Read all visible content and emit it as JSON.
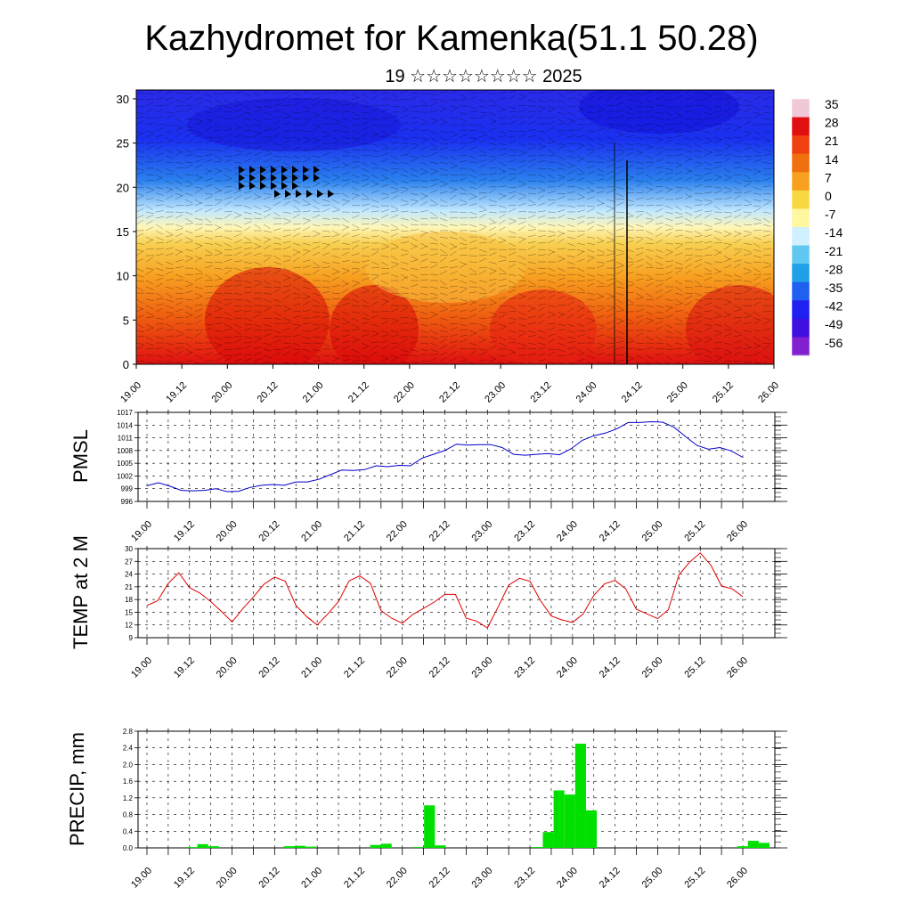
{
  "title": "Kazhydromet for Kamenka(51.1 50.28)",
  "subtitle": "19 ☆☆☆☆☆☆☆☆ 2025",
  "time_labels": [
    "19.00",
    "19.12",
    "20.00",
    "20.12",
    "21.00",
    "21.12",
    "22.00",
    "22.12",
    "23.00",
    "23.12",
    "24.00",
    "24.12",
    "25.00",
    "25.12",
    "26.00"
  ],
  "chart_data": [
    {
      "type": "heatmap",
      "name": "cross-section",
      "x_ticks": [
        "19.00",
        "19.12",
        "20.00",
        "20.12",
        "21.00",
        "21.12",
        "22.00",
        "22.12",
        "23.00",
        "23.12",
        "24.00",
        "24.12",
        "25.00",
        "25.12",
        "26.00"
      ],
      "y_ticks": [
        "0",
        "5",
        "10",
        "15",
        "20",
        "25",
        "30"
      ],
      "ylim": [
        0,
        31
      ],
      "colorbar_ticks": [
        "35",
        "28",
        "21",
        "14",
        "7",
        "0",
        "-7",
        "-14",
        "-21",
        "-28",
        "-35",
        "-42",
        "-49",
        "-56"
      ],
      "colorbar_colors": [
        "#f0c8d8",
        "#e01010",
        "#f04010",
        "#f07010",
        "#f8a020",
        "#f8d840",
        "#fff8a0",
        "#d0f0ff",
        "#60c8f0",
        "#20a0e8",
        "#2060f0",
        "#2020f0",
        "#4010e0",
        "#8020d0"
      ]
    },
    {
      "type": "line",
      "name": "pmsl",
      "ylabel": "PMSL",
      "x_ticks": [
        "19.00",
        "19.12",
        "20.00",
        "20.12",
        "21.00",
        "21.12",
        "22.00",
        "22.12",
        "23.00",
        "23.12",
        "24.00",
        "24.12",
        "25.00",
        "25.12",
        "26.00"
      ],
      "y_ticks": [
        "1017",
        "1014",
        "1011",
        "1008",
        "1005",
        "1002",
        "999",
        "996"
      ],
      "ylim": [
        996,
        1017
      ],
      "color": "#0000cc",
      "values": [
        999.7,
        1000.4,
        999.6,
        998.6,
        998.5,
        998.6,
        999.0,
        998.3,
        998.4,
        999.3,
        999.8,
        1000.0,
        999.8,
        1000.6,
        1000.6,
        1001.2,
        1002.3,
        1003.4,
        1003.3,
        1003.5,
        1004.4,
        1004.2,
        1004.5,
        1004.4,
        1006.2,
        1007.1,
        1008.0,
        1009.5,
        1009.3,
        1009.4,
        1009.4,
        1008.7,
        1007.1,
        1006.9,
        1007.1,
        1007.3,
        1007.0,
        1008.4,
        1010.4,
        1011.5,
        1012.1,
        1013.1,
        1014.6,
        1014.6,
        1014.8,
        1014.7,
        1013.5,
        1011.3,
        1009.2,
        1008.3,
        1008.7,
        1007.9,
        1006.4
      ],
      "grid": true
    },
    {
      "type": "line",
      "name": "temp",
      "ylabel": "TEMP at 2 M",
      "x_ticks": [
        "19.00",
        "19.12",
        "20.00",
        "20.12",
        "21.00",
        "21.12",
        "22.00",
        "22.12",
        "23.00",
        "23.12",
        "24.00",
        "24.12",
        "25.00",
        "25.12",
        "26.00"
      ],
      "y_ticks": [
        "30",
        "27",
        "24",
        "21",
        "18",
        "15",
        "12",
        "9"
      ],
      "ylim": [
        9,
        30
      ],
      "color": "#dd0000",
      "values": [
        16.6,
        17.7,
        21.8,
        24.3,
        20.8,
        19.5,
        17.5,
        15.2,
        12.7,
        15.8,
        18.6,
        21.6,
        23.3,
        22.3,
        16.6,
        14.0,
        12.0,
        14.6,
        17.5,
        22.4,
        23.6,
        21.8,
        15.4,
        13.6,
        12.4,
        14.5,
        15.9,
        17.4,
        19.2,
        19.2,
        13.6,
        12.9,
        11.3,
        16.2,
        21.4,
        23.0,
        22.3,
        17.7,
        14.1,
        13.2,
        12.6,
        14.6,
        19.0,
        21.7,
        22.5,
        20.5,
        15.7,
        14.6,
        13.5,
        15.6,
        23.8,
        26.8,
        29.0,
        26.1,
        21.2,
        20.5,
        18.7
      ],
      "grid": true
    },
    {
      "type": "bar",
      "name": "precip",
      "ylabel": "PRECIP, mm",
      "x_ticks": [
        "19.00",
        "19.12",
        "20.00",
        "20.12",
        "21.00",
        "21.12",
        "22.00",
        "22.12",
        "23.00",
        "23.12",
        "24.00",
        "24.12",
        "25.00",
        "25.12",
        "26.00"
      ],
      "y_ticks": [
        "2.8",
        "2.4",
        "2.0",
        "1.6",
        "1.2",
        "0.8",
        "0.4",
        "0.0"
      ],
      "ylim": [
        0,
        2.8
      ],
      "color": "#00e000",
      "values": [
        0,
        0,
        0,
        0,
        0.02,
        0.09,
        0.04,
        0,
        0,
        0,
        0,
        0,
        0,
        0.04,
        0.05,
        0.03,
        0,
        0,
        0,
        0,
        0,
        0.07,
        0.1,
        0,
        0,
        0.02,
        1.02,
        0.06,
        0,
        0,
        0,
        0,
        0,
        0,
        0,
        0,
        0.02,
        0.38,
        1.38,
        1.28,
        2.5,
        0.9,
        0,
        0,
        0,
        0,
        0,
        0,
        0,
        0,
        0,
        0,
        0,
        0,
        0,
        0.04,
        0.17,
        0.12
      ],
      "grid": true
    }
  ]
}
